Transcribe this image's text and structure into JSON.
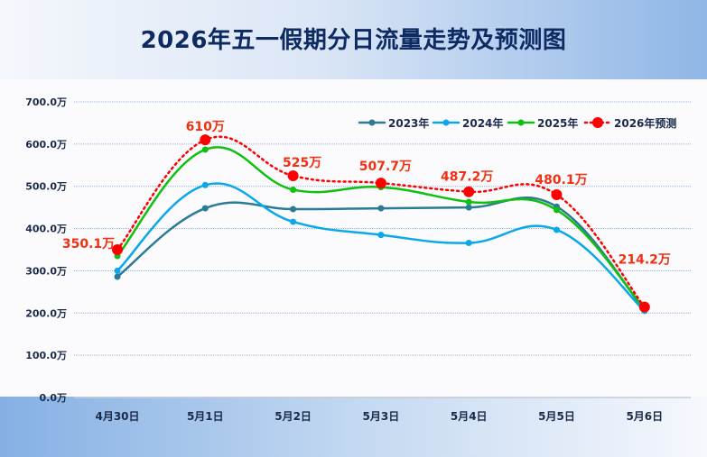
{
  "title": "2026年五一假期分日流量走势及预测图",
  "chart_data": {
    "type": "line",
    "title": "2026年五一假期分日流量走势及预测图",
    "categories": [
      "4月30日",
      "5月1日",
      "5月2日",
      "5月3日",
      "5月4日",
      "5月5日",
      "5月6日"
    ],
    "ylim": [
      0,
      700
    ],
    "yticks": [
      0,
      100,
      200,
      300,
      400,
      500,
      600,
      700
    ],
    "ytick_labels": [
      "0.0万",
      "100.0万",
      "200.0万",
      "300.0万",
      "400.0万",
      "500.0万",
      "600.0万",
      "700.0万"
    ],
    "grid": true,
    "legend_position": "top-right",
    "series": [
      {
        "name": "2023年",
        "color": "#2a7b93",
        "style": "solid",
        "values": [
          286,
          448,
          446,
          448,
          450,
          452,
          207
        ]
      },
      {
        "name": "2024年",
        "color": "#0aa8e8",
        "style": "solid",
        "values": [
          300,
          503,
          416,
          385,
          366,
          397,
          205
        ]
      },
      {
        "name": "2025年",
        "color": "#10c010",
        "style": "solid",
        "values": [
          335,
          587,
          492,
          498,
          463,
          444,
          210
        ]
      },
      {
        "name": "2026年预测",
        "color": "#ff0000",
        "style": "dotted",
        "values": [
          350.1,
          610,
          525,
          507.7,
          487.2,
          480.1,
          214.2
        ],
        "data_labels": [
          "350.1万",
          "610万",
          "525万",
          "507.7万",
          "487.2万",
          "480.1万",
          "214.2万"
        ]
      }
    ]
  }
}
